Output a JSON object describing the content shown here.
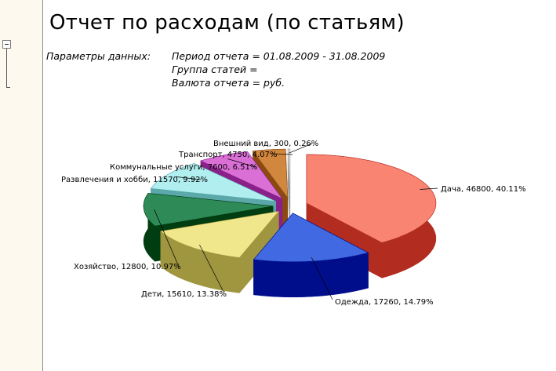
{
  "report": {
    "title": "Отчет по расходам (по статьям)"
  },
  "params": {
    "label": "Параметры данных:",
    "period": "Период отчета = 01.08.2009 - 31.08.2009",
    "group": "Группа статей =",
    "currency": "Валюта отчета = руб."
  },
  "tree": {
    "collapse_icon": "minus-box-icon"
  },
  "chart_data": {
    "type": "pie",
    "style": "3d-exploded",
    "labels": [
      "Дача",
      "Одежда",
      "Дети",
      "Хозяйство",
      "Развлечения и хобби",
      "Коммунальные услуги",
      "Транспорт",
      "Внешний вид"
    ],
    "values": [
      46800,
      17260,
      15610,
      12800,
      11570,
      7600,
      4750,
      300
    ],
    "percents": [
      "40.11%",
      "14.79%",
      "13.38%",
      "10.97%",
      "9.92%",
      "6.51%",
      "4.07%",
      "0.26%"
    ],
    "data_labels": [
      "Дача, 46800, 40.11%",
      "Одежда, 17260, 14.79%",
      "Дети, 15610, 13.38%",
      "Хозяйство, 12800, 10.97%",
      "Развлечения и хобби, 11570, 9.92%",
      "Коммунальные услуги, 7600, 6.51%",
      "Транспорт, 4750, 4.07%",
      "Внешний вид, 300, 0.26%"
    ],
    "colors": [
      "#f98472",
      "#4169e1",
      "#f0e68c",
      "#2e8b57",
      "#b0eef0",
      "#da70d6",
      "#d2873f",
      "#e8e8e8"
    ],
    "side_colors": [
      "#b22d20",
      "#000e8c",
      "#a09640",
      "#003d10",
      "#5aa8aa",
      "#8a208a",
      "#8a4a10",
      "#9a9a9a"
    ]
  }
}
